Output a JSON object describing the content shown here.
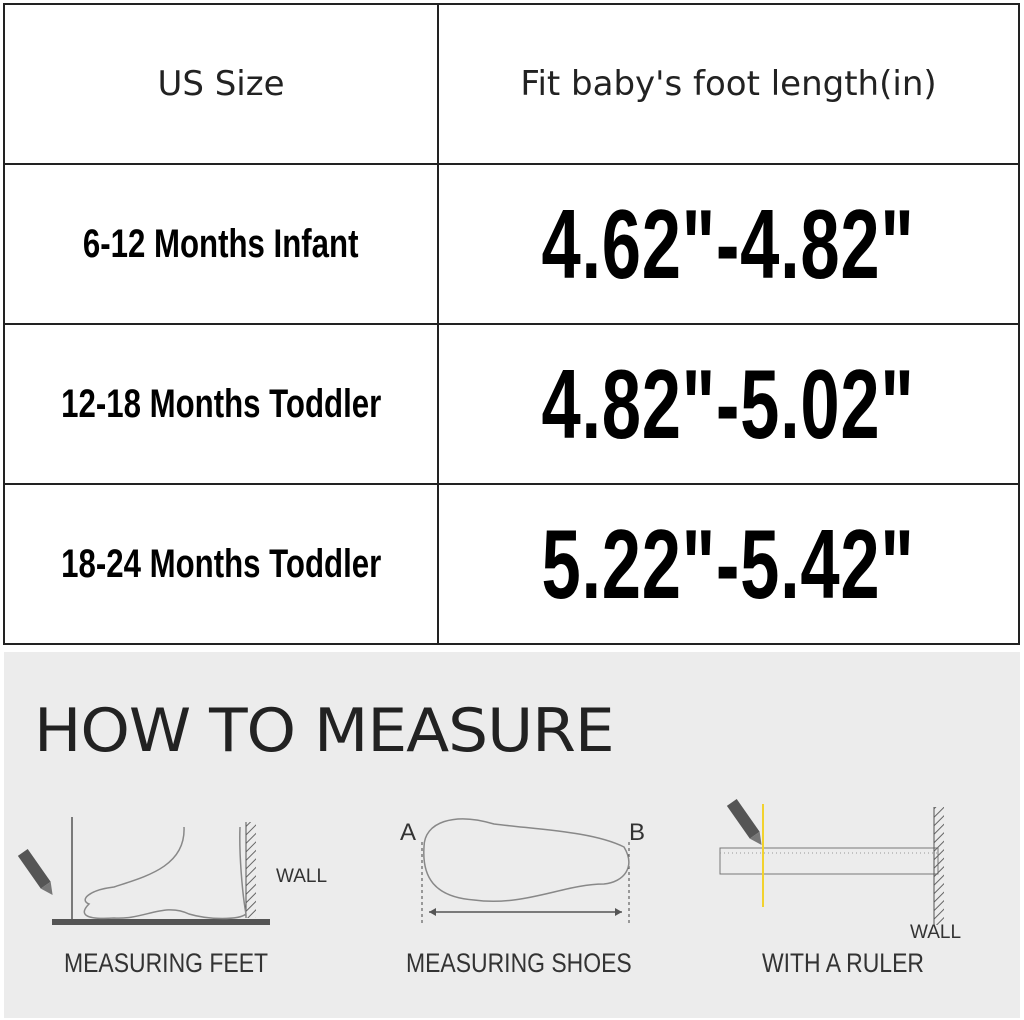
{
  "size_chart": {
    "headers": [
      "US Size",
      "Fit baby's foot length(in)"
    ],
    "rows": [
      {
        "size": "6-12 Months Infant",
        "length": "4.62\"-4.82\""
      },
      {
        "size": "12-18 Months Toddler",
        "length": "4.82\"-5.02\""
      },
      {
        "size": "18-24 Months Toddler",
        "length": "5.22\"-5.42\""
      }
    ]
  },
  "how_to_measure": {
    "title": "HOW TO MEASURE",
    "steps": [
      {
        "caption": "MEASURING FEET",
        "label": "WALL"
      },
      {
        "caption": "MEASURING SHOES",
        "label_a": "A",
        "label_b": "B"
      },
      {
        "caption": "WITH A RULER",
        "label": "WALL"
      }
    ],
    "colors": {
      "panel": "#ececec",
      "pencil_line": "#f2d22e"
    }
  }
}
